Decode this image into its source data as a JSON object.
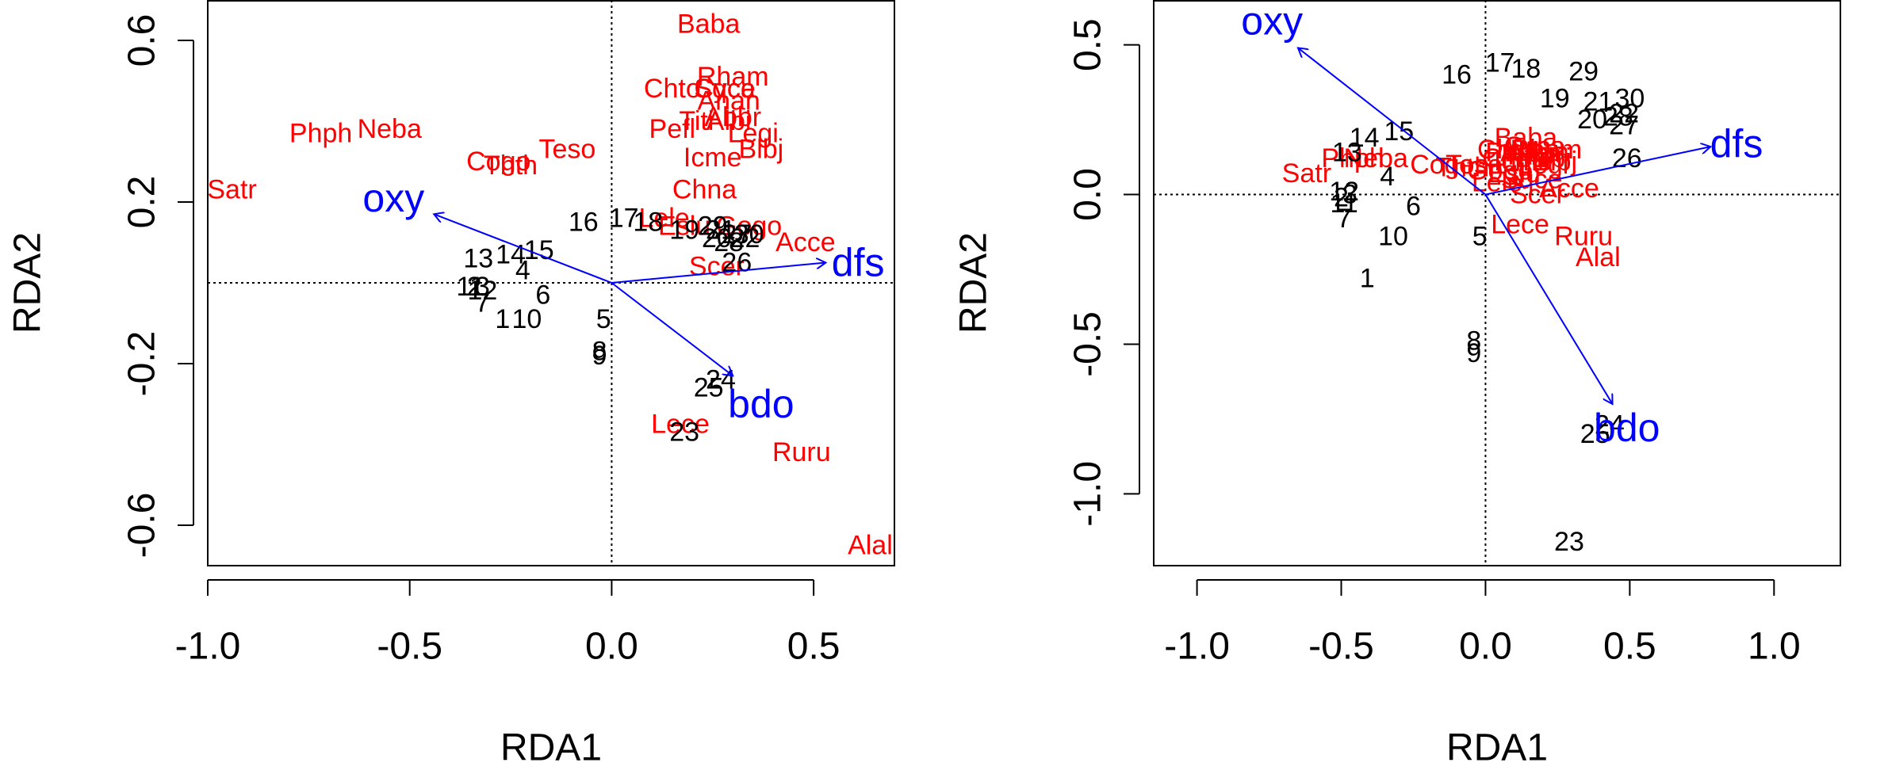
{
  "panels": [
    {
      "xlabel": "RDA1",
      "ylabel": "RDA2",
      "xticks": [
        -1.0,
        -0.5,
        0.0,
        0.5
      ],
      "xtick_labels": [
        "-1.0",
        "-0.5",
        "0.0",
        "0.5"
      ],
      "yticks": [
        -0.6,
        -0.2,
        0.2,
        0.6
      ],
      "ytick_labels": [
        "-0.6",
        "-0.2",
        "0.2",
        "0.6"
      ]
    },
    {
      "xlabel": "RDA1",
      "ylabel": "RDA2",
      "xticks": [
        -1.0,
        -0.5,
        0.0,
        0.5,
        1.0
      ],
      "xtick_labels": [
        "-1.0",
        "-0.5",
        "0.0",
        "0.5",
        "1.0"
      ],
      "yticks": [
        -1.0,
        -0.5,
        0.0,
        0.5
      ],
      "ytick_labels": [
        "-1.0",
        "-0.5",
        "0.0",
        "0.5"
      ]
    }
  ],
  "colors": {
    "sites": "#000000",
    "species": "#ff0000",
    "variables": "#0000ff",
    "axes": "#000000"
  },
  "chart_data": [
    {
      "type": "scatter",
      "xlim": [
        -1.0,
        0.7
      ],
      "ylim": [
        -0.7,
        0.7
      ],
      "zero_lines": "dotted",
      "sites": [
        {
          "label": "1",
          "x": -0.27,
          "y": -0.09
        },
        {
          "label": "2",
          "x": -0.34,
          "y": -0.01
        },
        {
          "label": "3",
          "x": -0.32,
          "y": -0.01
        },
        {
          "label": "4",
          "x": -0.22,
          "y": 0.03
        },
        {
          "label": "5",
          "x": -0.02,
          "y": -0.09
        },
        {
          "label": "6",
          "x": -0.17,
          "y": -0.03
        },
        {
          "label": "7",
          "x": -0.32,
          "y": -0.05
        },
        {
          "label": "8",
          "x": -0.03,
          "y": -0.17
        },
        {
          "label": "9",
          "x": -0.03,
          "y": -0.18
        },
        {
          "label": "10",
          "x": -0.21,
          "y": -0.09
        },
        {
          "label": "11",
          "x": -0.35,
          "y": -0.01
        },
        {
          "label": "12",
          "x": -0.32,
          "y": -0.02
        },
        {
          "label": "13",
          "x": -0.33,
          "y": 0.06
        },
        {
          "label": "14",
          "x": -0.25,
          "y": 0.07
        },
        {
          "label": "15",
          "x": -0.18,
          "y": 0.08
        },
        {
          "label": "16",
          "x": -0.07,
          "y": 0.15
        },
        {
          "label": "17",
          "x": 0.03,
          "y": 0.16
        },
        {
          "label": "18",
          "x": 0.09,
          "y": 0.15
        },
        {
          "label": "19",
          "x": 0.18,
          "y": 0.13
        },
        {
          "label": "20",
          "x": 0.26,
          "y": 0.11
        },
        {
          "label": "21",
          "x": 0.27,
          "y": 0.13
        },
        {
          "label": "22",
          "x": 0.33,
          "y": 0.11
        },
        {
          "label": "23",
          "x": 0.18,
          "y": -0.37
        },
        {
          "label": "24",
          "x": 0.27,
          "y": -0.24
        },
        {
          "label": "25",
          "x": 0.24,
          "y": -0.26
        },
        {
          "label": "26",
          "x": 0.31,
          "y": 0.05
        },
        {
          "label": "27",
          "x": 0.31,
          "y": 0.12
        },
        {
          "label": "28",
          "x": 0.29,
          "y": 0.1
        },
        {
          "label": "29",
          "x": 0.25,
          "y": 0.14
        },
        {
          "label": "30",
          "x": 0.34,
          "y": 0.12
        }
      ],
      "species": [
        {
          "label": "Satr",
          "x": -0.94,
          "y": 0.23
        },
        {
          "label": "Phph",
          "x": -0.72,
          "y": 0.37
        },
        {
          "label": "Neba",
          "x": -0.55,
          "y": 0.38
        },
        {
          "label": "Thth",
          "x": -0.25,
          "y": 0.29
        },
        {
          "label": "Cogo",
          "x": -0.28,
          "y": 0.3
        },
        {
          "label": "Teso",
          "x": -0.11,
          "y": 0.33
        },
        {
          "label": "Baba",
          "x": 0.24,
          "y": 0.64
        },
        {
          "label": "Rham",
          "x": 0.3,
          "y": 0.51
        },
        {
          "label": "Chna",
          "x": 0.23,
          "y": 0.23
        },
        {
          "label": "Icme",
          "x": 0.25,
          "y": 0.31
        },
        {
          "label": "Anan",
          "x": 0.29,
          "y": 0.45
        },
        {
          "label": "Albi",
          "x": 0.29,
          "y": 0.4
        },
        {
          "label": "Abbr",
          "x": 0.3,
          "y": 0.41
        },
        {
          "label": "Blbj",
          "x": 0.37,
          "y": 0.33
        },
        {
          "label": "Legi",
          "x": 0.35,
          "y": 0.37
        },
        {
          "label": "Cyca",
          "x": 0.28,
          "y": 0.48
        },
        {
          "label": "Gogo",
          "x": 0.34,
          "y": 0.14
        },
        {
          "label": "Pefl",
          "x": 0.15,
          "y": 0.38
        },
        {
          "label": "Titi",
          "x": 0.21,
          "y": 0.4
        },
        {
          "label": "Eslu",
          "x": 0.18,
          "y": 0.14
        },
        {
          "label": "Chto",
          "x": 0.15,
          "y": 0.48
        },
        {
          "label": "Sqce",
          "x": 0.28,
          "y": 0.48
        },
        {
          "label": "Lele",
          "x": 0.13,
          "y": 0.16
        },
        {
          "label": "Acce",
          "x": 0.48,
          "y": 0.1
        },
        {
          "label": "Scer",
          "x": 0.26,
          "y": 0.04
        },
        {
          "label": "Lece",
          "x": 0.17,
          "y": -0.35
        },
        {
          "label": "Ruru",
          "x": 0.47,
          "y": -0.42
        },
        {
          "label": "Alal",
          "x": 0.64,
          "y": -0.65
        }
      ],
      "variables": [
        {
          "label": "oxy",
          "x": -0.44,
          "y": 0.17,
          "label_x": -0.54,
          "label_y": 0.21
        },
        {
          "label": "dfs",
          "x": 0.53,
          "y": 0.05,
          "label_x": 0.61,
          "label_y": 0.05
        },
        {
          "label": "bdo",
          "x": 0.3,
          "y": -0.23,
          "label_x": 0.37,
          "label_y": -0.3
        }
      ]
    },
    {
      "type": "scatter",
      "xlim": [
        -1.15,
        1.23
      ],
      "ylim": [
        -1.24,
        0.65
      ],
      "zero_lines": "dotted",
      "sites": [
        {
          "label": "1",
          "x": -0.41,
          "y": -0.28
        },
        {
          "label": "2",
          "x": -0.5,
          "y": -0.01
        },
        {
          "label": "3",
          "x": -0.47,
          "y": 0.0
        },
        {
          "label": "4",
          "x": -0.34,
          "y": 0.06
        },
        {
          "label": "5",
          "x": -0.02,
          "y": -0.14
        },
        {
          "label": "6",
          "x": -0.25,
          "y": -0.04
        },
        {
          "label": "7",
          "x": -0.49,
          "y": -0.08
        },
        {
          "label": "8",
          "x": -0.04,
          "y": -0.49
        },
        {
          "label": "9",
          "x": -0.04,
          "y": -0.53
        },
        {
          "label": "10",
          "x": -0.32,
          "y": -0.14
        },
        {
          "label": "11",
          "x": -0.49,
          "y": -0.03
        },
        {
          "label": "12",
          "x": -0.49,
          "y": 0.01
        },
        {
          "label": "13",
          "x": -0.48,
          "y": 0.14
        },
        {
          "label": "14",
          "x": -0.42,
          "y": 0.19
        },
        {
          "label": "15",
          "x": -0.3,
          "y": 0.21
        },
        {
          "label": "16",
          "x": -0.1,
          "y": 0.4
        },
        {
          "label": "17",
          "x": 0.05,
          "y": 0.44
        },
        {
          "label": "18",
          "x": 0.14,
          "y": 0.42
        },
        {
          "label": "19",
          "x": 0.24,
          "y": 0.32
        },
        {
          "label": "20",
          "x": 0.37,
          "y": 0.25
        },
        {
          "label": "21",
          "x": 0.39,
          "y": 0.31
        },
        {
          "label": "22",
          "x": 0.48,
          "y": 0.27
        },
        {
          "label": "23",
          "x": 0.29,
          "y": -1.16
        },
        {
          "label": "24",
          "x": 0.43,
          "y": -0.77
        },
        {
          "label": "25",
          "x": 0.38,
          "y": -0.8
        },
        {
          "label": "26",
          "x": 0.49,
          "y": 0.12
        },
        {
          "label": "27",
          "x": 0.48,
          "y": 0.23
        },
        {
          "label": "28",
          "x": 0.46,
          "y": 0.26
        },
        {
          "label": "29",
          "x": 0.34,
          "y": 0.41
        },
        {
          "label": "30",
          "x": 0.5,
          "y": 0.32
        }
      ],
      "species": [
        {
          "label": "Satr",
          "x": -0.62,
          "y": 0.07
        },
        {
          "label": "Phph",
          "x": -0.46,
          "y": 0.12
        },
        {
          "label": "Neba",
          "x": -0.38,
          "y": 0.12
        },
        {
          "label": "Thth",
          "x": -0.08,
          "y": 0.09
        },
        {
          "label": "Cogo",
          "x": -0.15,
          "y": 0.1
        },
        {
          "label": "Teso",
          "x": -0.04,
          "y": 0.1
        },
        {
          "label": "Baba",
          "x": 0.14,
          "y": 0.19
        },
        {
          "label": "Rham",
          "x": 0.21,
          "y": 0.15
        },
        {
          "label": "Chna",
          "x": 0.1,
          "y": 0.12
        },
        {
          "label": "Icme",
          "x": 0.13,
          "y": 0.11
        },
        {
          "label": "Anan",
          "x": 0.18,
          "y": 0.14
        },
        {
          "label": "Albi",
          "x": 0.22,
          "y": 0.12
        },
        {
          "label": "Abbr",
          "x": 0.15,
          "y": 0.14
        },
        {
          "label": "Blbj",
          "x": 0.24,
          "y": 0.11
        },
        {
          "label": "Legi",
          "x": 0.2,
          "y": 0.1
        },
        {
          "label": "Cyca",
          "x": 0.17,
          "y": 0.16
        },
        {
          "label": "Gogo",
          "x": 0.05,
          "y": 0.08
        },
        {
          "label": "Pefl",
          "x": 0.08,
          "y": 0.14
        },
        {
          "label": "Titi",
          "x": 0.12,
          "y": 0.13
        },
        {
          "label": "Eslu",
          "x": 0.1,
          "y": 0.07
        },
        {
          "label": "Chto",
          "x": 0.07,
          "y": 0.15
        },
        {
          "label": "Sqce",
          "x": 0.16,
          "y": 0.05
        },
        {
          "label": "Lele",
          "x": 0.04,
          "y": 0.04
        },
        {
          "label": "Acce",
          "x": 0.29,
          "y": 0.02
        },
        {
          "label": "Scer",
          "x": 0.18,
          "y": 0.0
        },
        {
          "label": "Lece",
          "x": 0.12,
          "y": -0.1
        },
        {
          "label": "Ruru",
          "x": 0.34,
          "y": -0.14
        },
        {
          "label": "Alal",
          "x": 0.39,
          "y": -0.21
        }
      ],
      "variables": [
        {
          "label": "oxy",
          "x": -0.65,
          "y": 0.49,
          "label_x": -0.74,
          "label_y": 0.58
        },
        {
          "label": "dfs",
          "x": 0.78,
          "y": 0.16,
          "label_x": 0.87,
          "label_y": 0.17
        },
        {
          "label": "bdo",
          "x": 0.44,
          "y": -0.7,
          "label_x": 0.49,
          "label_y": -0.78
        }
      ]
    }
  ]
}
